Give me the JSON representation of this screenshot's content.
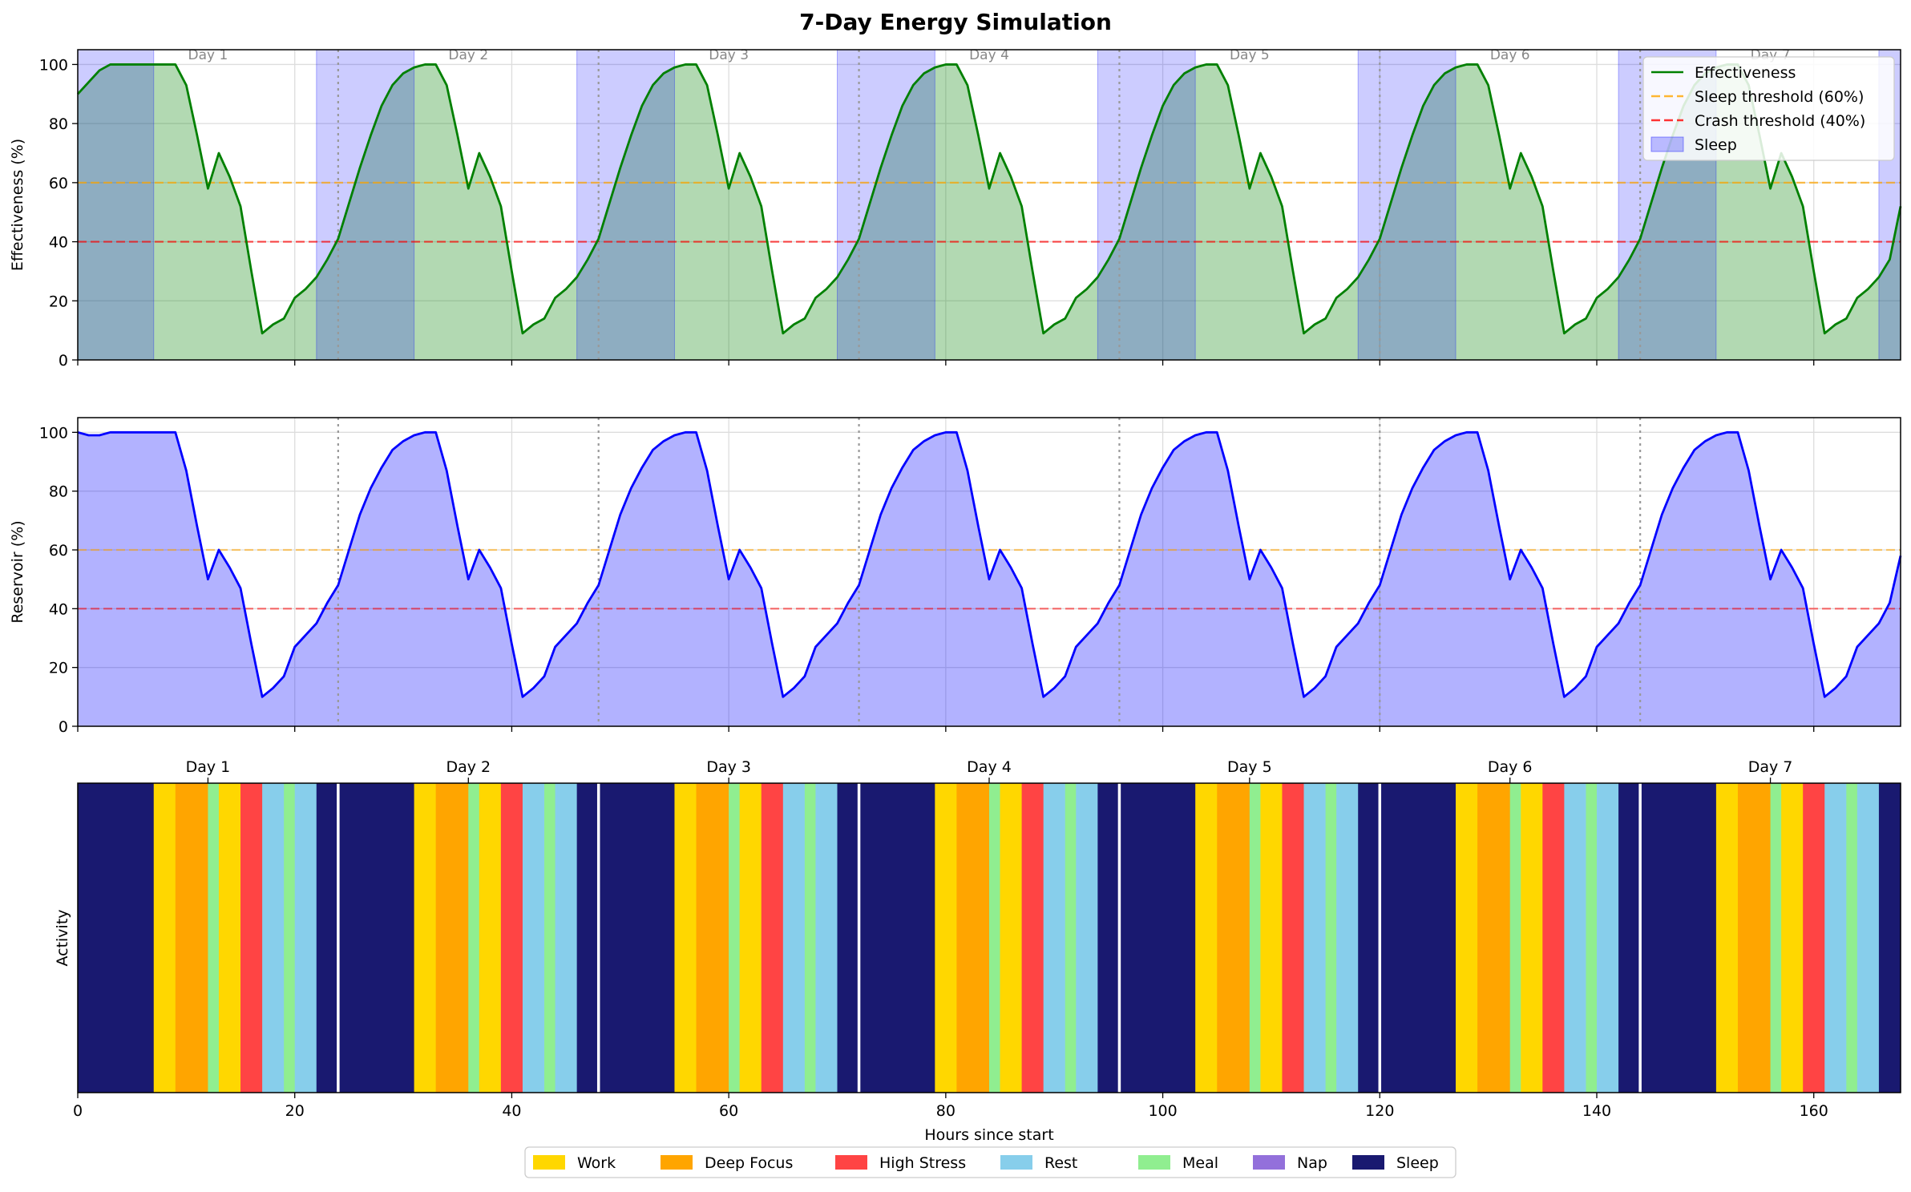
{
  "figure": {
    "title": "7-Day Energy Simulation"
  },
  "chart_data": [
    {
      "type": "line",
      "panel": "effectiveness",
      "ylabel": "Effectiveness (%)",
      "xlim": [
        0,
        168
      ],
      "ylim": [
        0,
        105
      ],
      "grid": true,
      "yticks": [
        "0",
        "20",
        "40",
        "60",
        "80",
        "100"
      ],
      "day_labels": [
        "Day 1",
        "Day 2",
        "Day 3",
        "Day 4",
        "Day 5",
        "Day 6",
        "Day 7"
      ],
      "day_positions": [
        12,
        36,
        60,
        84,
        108,
        132,
        156
      ],
      "day_boundaries": [
        24,
        48,
        72,
        96,
        120,
        144
      ],
      "day_profile": {
        "x": [
          0,
          1,
          2,
          3,
          4,
          5,
          6,
          7,
          8,
          9,
          10,
          11,
          12,
          13,
          14,
          15,
          16,
          17,
          18,
          19,
          20,
          21,
          22,
          23
        ],
        "y": [
          41,
          53,
          65,
          76,
          86,
          93,
          97,
          99,
          100,
          100,
          93,
          76,
          58,
          70,
          62,
          52,
          30,
          9,
          12,
          14,
          21,
          24,
          28,
          34
        ]
      },
      "initial_values": {
        "x": [
          0,
          1,
          2,
          3,
          4,
          5,
          6,
          7
        ],
        "y": [
          90,
          94,
          98,
          100,
          100,
          100,
          100,
          100
        ]
      },
      "final_value": {
        "x": 168,
        "y": 52
      },
      "series": [
        {
          "name": "Effectiveness",
          "color": "#008000"
        }
      ],
      "thresholds": [
        {
          "name": "Sleep threshold (60%)",
          "value": 60,
          "color": "#FFA500"
        },
        {
          "name": "Crash threshold (40%)",
          "value": 40,
          "color": "#FF0000"
        }
      ],
      "sleep_periods": [
        [
          0,
          7
        ],
        [
          22,
          31
        ],
        [
          46,
          55
        ],
        [
          70,
          79
        ],
        [
          94,
          103
        ],
        [
          118,
          127
        ],
        [
          142,
          151
        ],
        [
          166,
          168
        ]
      ],
      "sleep_label": "Sleep",
      "legend_position": "top-right"
    },
    {
      "type": "area",
      "panel": "reservoir",
      "ylabel": "Reservoir (%)",
      "xlim": [
        0,
        168
      ],
      "ylim": [
        0,
        105
      ],
      "grid": true,
      "yticks": [
        "0",
        "20",
        "40",
        "60",
        "80",
        "100"
      ],
      "day_boundaries": [
        24,
        48,
        72,
        96,
        120,
        144
      ],
      "day_profile": {
        "x": [
          0,
          1,
          2,
          3,
          4,
          5,
          6,
          7,
          8,
          9,
          10,
          11,
          12,
          13,
          14,
          15,
          16,
          17,
          18,
          19,
          20,
          21,
          22,
          23
        ],
        "y": [
          48,
          60,
          72,
          81,
          88,
          94,
          97,
          99,
          100,
          100,
          87,
          68,
          50,
          60,
          54,
          47,
          28,
          10,
          13,
          17,
          27,
          31,
          35,
          42
        ]
      },
      "initial_values": {
        "x": [
          0,
          1,
          2,
          3,
          4,
          5,
          6,
          7
        ],
        "y": [
          100,
          99,
          99,
          100,
          100,
          100,
          100,
          100
        ]
      },
      "final_value": {
        "x": 168,
        "y": 58
      },
      "series": [
        {
          "name": "Reservoir",
          "color": "#0000FF"
        }
      ],
      "thresholds": [
        {
          "value": 60,
          "color": "#FFA500"
        },
        {
          "value": 40,
          "color": "#FF0000"
        }
      ]
    },
    {
      "type": "heatmap",
      "panel": "activity",
      "ylabel": "Activity",
      "xlabel": "Hours since start",
      "xlim": [
        0,
        168
      ],
      "xticks": [
        "0",
        "20",
        "40",
        "60",
        "80",
        "100",
        "120",
        "140",
        "160"
      ],
      "day_labels": [
        "Day 1",
        "Day 2",
        "Day 3",
        "Day 4",
        "Day 5",
        "Day 6",
        "Day 7"
      ],
      "day_positions": [
        12,
        36,
        60,
        84,
        108,
        132,
        156
      ],
      "day_boundaries": [
        24,
        48,
        72,
        96,
        120,
        144
      ],
      "day_schedule": [
        {
          "activity": "Sleep",
          "start": 0,
          "end": 7
        },
        {
          "activity": "Work",
          "start": 7,
          "end": 9
        },
        {
          "activity": "Deep Focus",
          "start": 9,
          "end": 12
        },
        {
          "activity": "Meal",
          "start": 12,
          "end": 13
        },
        {
          "activity": "Work",
          "start": 13,
          "end": 15
        },
        {
          "activity": "High Stress",
          "start": 15,
          "end": 17
        },
        {
          "activity": "Rest",
          "start": 17,
          "end": 19
        },
        {
          "activity": "Meal",
          "start": 19,
          "end": 20
        },
        {
          "activity": "Rest",
          "start": 20,
          "end": 22
        },
        {
          "activity": "Sleep",
          "start": 22,
          "end": 24
        }
      ],
      "categories": [
        {
          "name": "Work",
          "color": "#FFD700"
        },
        {
          "name": "Deep Focus",
          "color": "#FFA500"
        },
        {
          "name": "High Stress",
          "color": "#FF4444"
        },
        {
          "name": "Rest",
          "color": "#87CEEB"
        },
        {
          "name": "Meal",
          "color": "#90EE90"
        },
        {
          "name": "Nap",
          "color": "#9370DB"
        },
        {
          "name": "Sleep",
          "color": "#191970"
        }
      ],
      "legend_position": "bottom-center"
    }
  ]
}
